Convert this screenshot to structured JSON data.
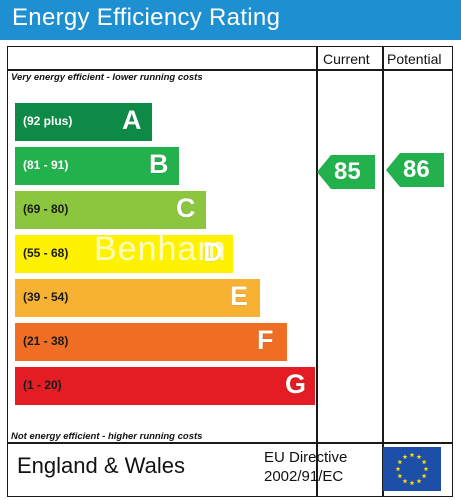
{
  "title": "Energy Efficiency Rating",
  "columns": {
    "current": "Current",
    "potential": "Potential"
  },
  "notes": {
    "top": "Very energy efficient - lower running costs",
    "bottom": "Not energy efficient - higher running costs"
  },
  "bands": [
    {
      "range": "(92 plus)",
      "letter": "A",
      "color": "#0c8a46",
      "range_color": "#ffffff"
    },
    {
      "range": "(81 - 91)",
      "letter": "B",
      "color": "#22b14c",
      "range_color": "#ffffff"
    },
    {
      "range": "(69 - 80)",
      "letter": "C",
      "color": "#8cc63e",
      "range_color": "#1a1a1a"
    },
    {
      "range": "(55 - 68)",
      "letter": "D",
      "color": "#fff200",
      "range_color": "#1a1a1a"
    },
    {
      "range": "(39 - 54)",
      "letter": "E",
      "color": "#f7b233",
      "range_color": "#1a1a1a"
    },
    {
      "range": "(21 - 38)",
      "letter": "F",
      "color": "#ef6e23",
      "range_color": "#1a1a1a"
    },
    {
      "range": "(1 - 20)",
      "letter": "G",
      "color": "#e31d23",
      "range_color": "#1a1a1a"
    }
  ],
  "ratings": {
    "current": {
      "value": "85",
      "band": "B",
      "color": "#22b14c"
    },
    "potential": {
      "value": "86",
      "band": "B",
      "color": "#22b14c"
    }
  },
  "footer": {
    "region": "England & Wales",
    "directive_line1": "EU Directive",
    "directive_line2": "2002/91/EC",
    "flag_colors": {
      "background": "#1e4fa8",
      "stars": "#ffde00"
    }
  },
  "watermark": "Benham",
  "colors": {
    "title_bar": "#1e8fd1",
    "title_text": "#ffffff"
  }
}
